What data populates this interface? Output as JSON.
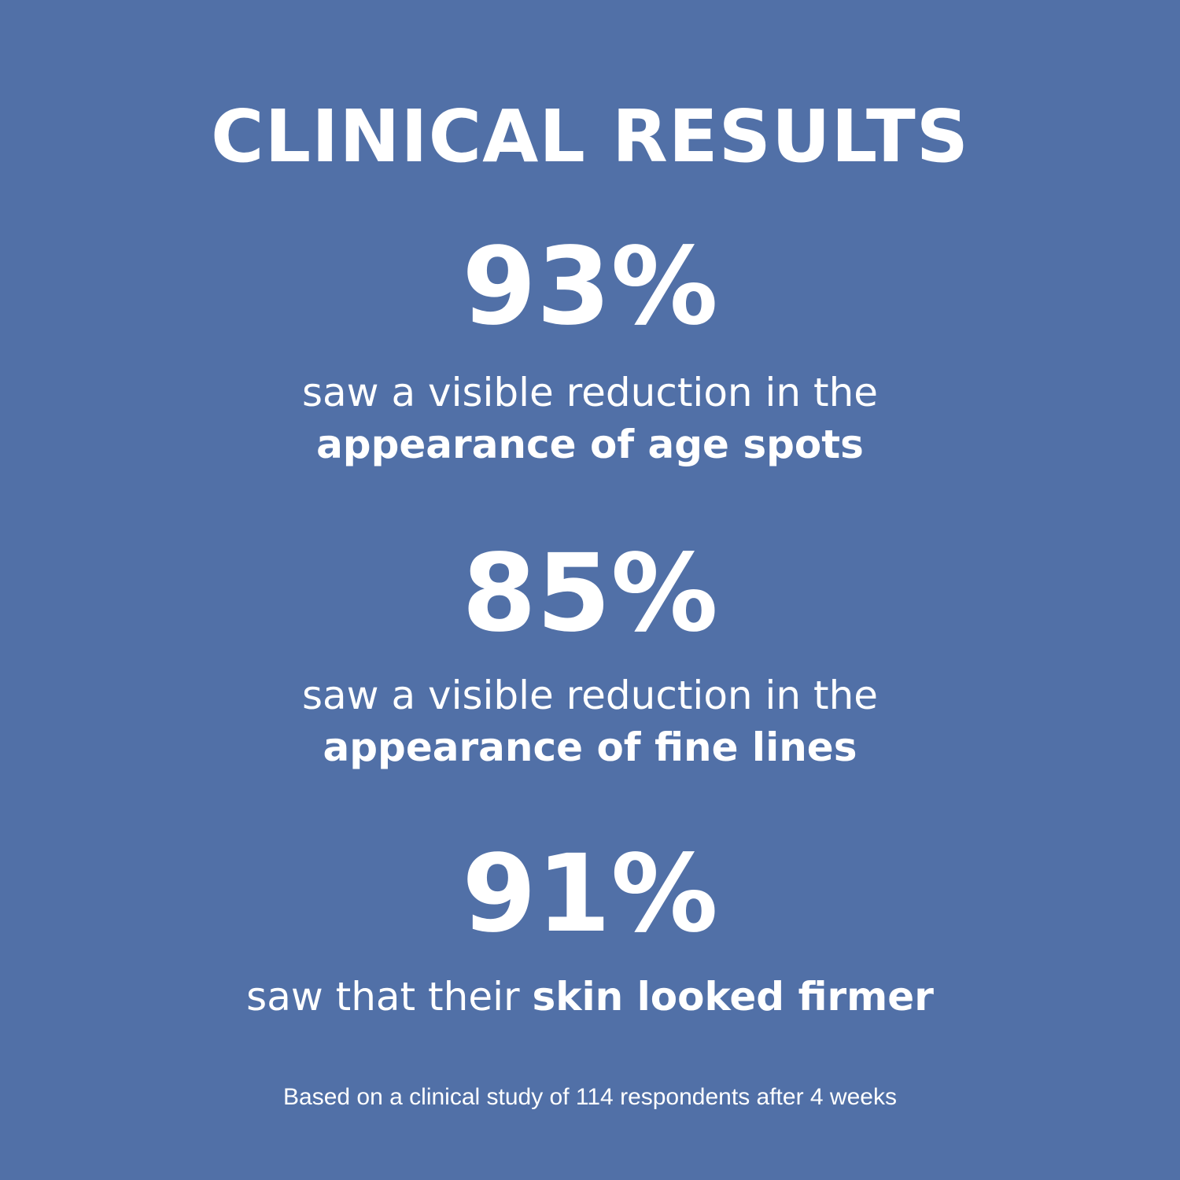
{
  "title": "CLINICAL RESULTS",
  "background_color": "#5170a7",
  "stats": [
    {
      "value": "93%",
      "line1": "saw a visible reduction in the",
      "line2_bold": "appearance of age spots"
    },
    {
      "value": "85%",
      "line1": "saw a visible reduction in the",
      "line2_bold": "appearance of fine lines"
    },
    {
      "value": "91%",
      "line1_regular": "saw that their ",
      "line1_bold": "skin looked firmer"
    }
  ],
  "footnote": "Based on a clinical study of 114 respondents after 4 weeks"
}
